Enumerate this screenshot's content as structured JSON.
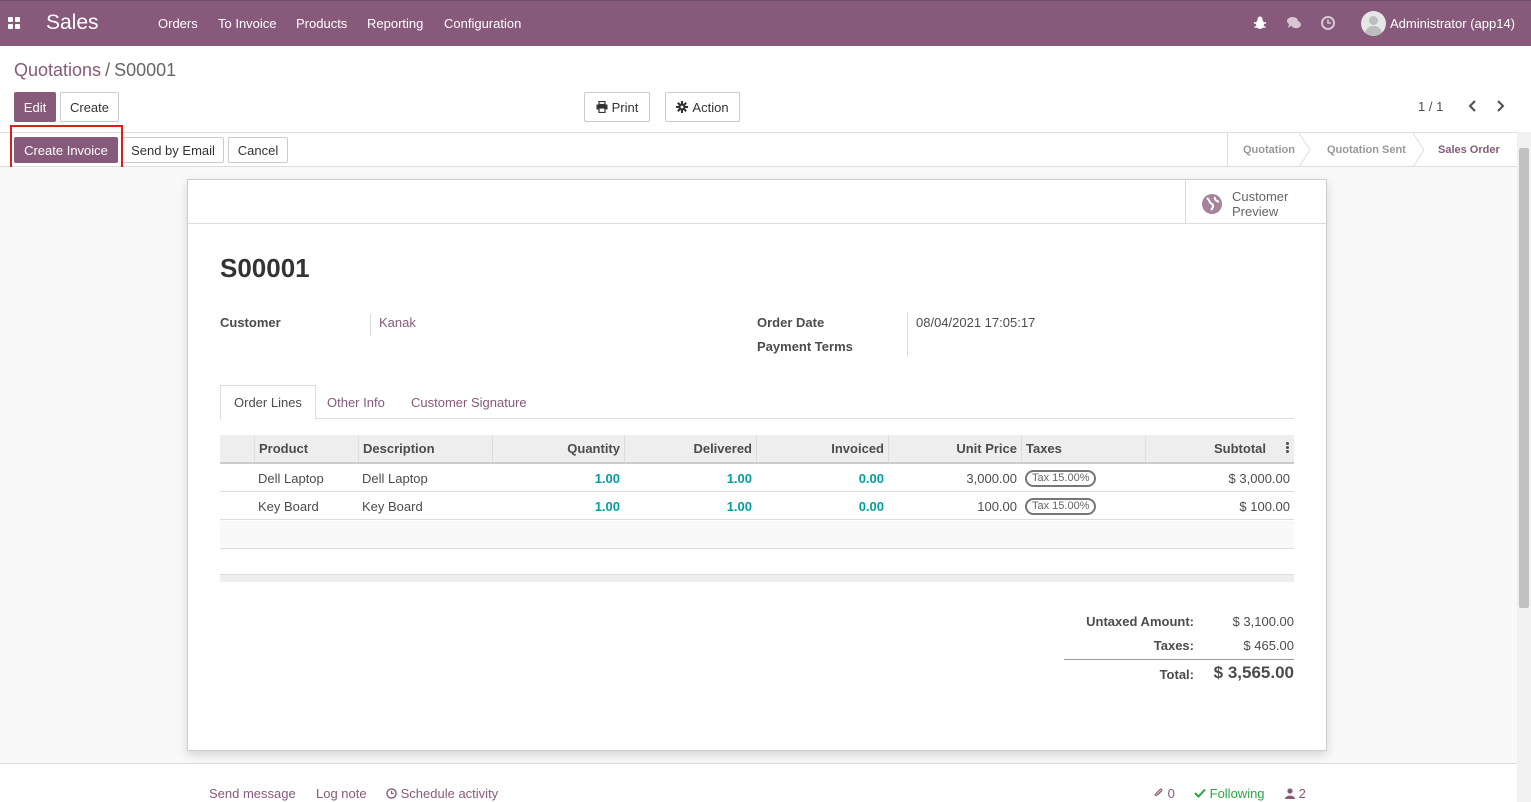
{
  "navbar": {
    "app_name": "Sales",
    "menu": [
      "Orders",
      "To Invoice",
      "Products",
      "Reporting",
      "Configuration"
    ],
    "user": "Administrator (app14)",
    "icons": [
      "apps-icon",
      "bug-icon",
      "chat-icon",
      "clock-icon"
    ],
    "bg_color": "#875a7b"
  },
  "breadcrumb": {
    "parent": "Quotations",
    "separator": "/",
    "current": "S00001"
  },
  "toolbar": {
    "edit_label": "Edit",
    "create_label": "Create",
    "print_label": "Print",
    "action_label": "Action",
    "pager": "1 / 1"
  },
  "statusbar": {
    "buttons": {
      "create_invoice": "Create Invoice",
      "send_email": "Send by Email",
      "cancel": "Cancel"
    },
    "stages": [
      "Quotation",
      "Quotation Sent",
      "Sales Order"
    ],
    "active_stage": "Sales Order"
  },
  "sheet": {
    "preview_label": "Customer Preview",
    "title": "S00001",
    "customer_label": "Customer",
    "customer_value": "Kanak",
    "order_date_label": "Order Date",
    "order_date_value": "08/04/2021 17:05:17",
    "payment_terms_label": "Payment Terms",
    "tabs": [
      "Order Lines",
      "Other Info",
      "Customer Signature"
    ],
    "active_tab": "Order Lines",
    "columns": [
      "Product",
      "Description",
      "Quantity",
      "Delivered",
      "Invoiced",
      "Unit Price",
      "Taxes",
      "Subtotal"
    ],
    "lines": [
      {
        "product": "Dell Laptop",
        "description": "Dell Laptop",
        "quantity": "1.00",
        "delivered": "1.00",
        "invoiced": "0.00",
        "unit_price": "3,000.00",
        "taxes": "Tax 15.00%",
        "subtotal": "$ 3,000.00"
      },
      {
        "product": "Key Board",
        "description": "Key Board",
        "quantity": "1.00",
        "delivered": "1.00",
        "invoiced": "0.00",
        "unit_price": "100.00",
        "taxes": "Tax 15.00%",
        "subtotal": "$ 100.00"
      }
    ],
    "totals": {
      "untaxed_label": "Untaxed Amount:",
      "untaxed_value": "$ 3,100.00",
      "taxes_label": "Taxes:",
      "taxes_value": "$ 465.00",
      "total_label": "Total:",
      "total_value": "$ 3,565.00"
    }
  },
  "chatter": {
    "send_message": "Send message",
    "log_note": "Log note",
    "schedule_activity": "Schedule activity",
    "attachments": "0",
    "following": "Following",
    "followers": "2"
  }
}
